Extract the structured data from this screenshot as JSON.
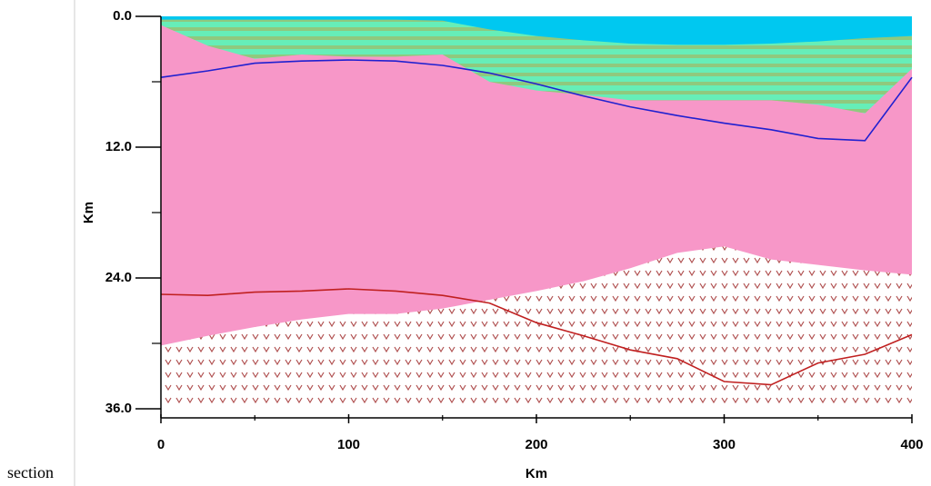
{
  "caption": "section",
  "chart_data": {
    "type": "area",
    "xlabel": "Km",
    "ylabel": "Km",
    "x": [
      0,
      25,
      50,
      75,
      100,
      125,
      150,
      175,
      200,
      225,
      250,
      275,
      300,
      325,
      350,
      375,
      400
    ],
    "xlim": [
      0,
      400
    ],
    "ylim": [
      0,
      36
    ],
    "y_inverted": true,
    "xticks": [
      0,
      100,
      200,
      300,
      400
    ],
    "xminor": [
      50,
      150,
      250,
      350
    ],
    "yticks": [
      {
        "value": 0,
        "label": "0.0"
      },
      {
        "value": 12,
        "label": "12.0"
      },
      {
        "value": 24,
        "label": "24.0"
      },
      {
        "value": 36,
        "label": "36.0"
      }
    ],
    "yminor": [
      6,
      18,
      30
    ],
    "background_pattern_color": "#b05050",
    "series": [
      {
        "kind": "fill",
        "color": "#f797c8",
        "values": [
          30.2,
          29.3,
          28.5,
          27.8,
          27.3,
          27.3,
          26.8,
          26.0,
          25.2,
          24.3,
          23.1,
          21.7,
          21.1,
          22.3,
          22.8,
          23.3,
          23.7
        ]
      },
      {
        "kind": "fill",
        "color": "#66eeb8",
        "stripe": "#99c070",
        "values": [
          0.8,
          2.7,
          3.9,
          3.5,
          3.7,
          3.7,
          3.5,
          6.0,
          6.8,
          7.2,
          7.7,
          7.7,
          7.7,
          7.7,
          8.1,
          8.9,
          4.8
        ]
      },
      {
        "kind": "fill",
        "color": "#00c8f0",
        "values": [
          0.3,
          0.3,
          0.3,
          0.3,
          0.3,
          0.3,
          0.4,
          1.2,
          1.8,
          2.2,
          2.5,
          2.6,
          2.6,
          2.5,
          2.3,
          2.0,
          1.8
        ]
      },
      {
        "kind": "line",
        "color": "#2020d0",
        "values": [
          5.6,
          5.0,
          4.3,
          4.1,
          4.0,
          4.1,
          4.5,
          5.2,
          6.2,
          7.3,
          8.3,
          9.1,
          9.8,
          10.4,
          11.2,
          11.4,
          5.6
        ]
      },
      {
        "kind": "line",
        "color": "#c02020",
        "values": [
          25.5,
          25.6,
          25.3,
          25.2,
          25.0,
          25.2,
          25.6,
          26.3,
          28.1,
          29.3,
          30.6,
          31.4,
          33.5,
          33.8,
          31.8,
          31.0,
          29.2
        ]
      }
    ]
  }
}
